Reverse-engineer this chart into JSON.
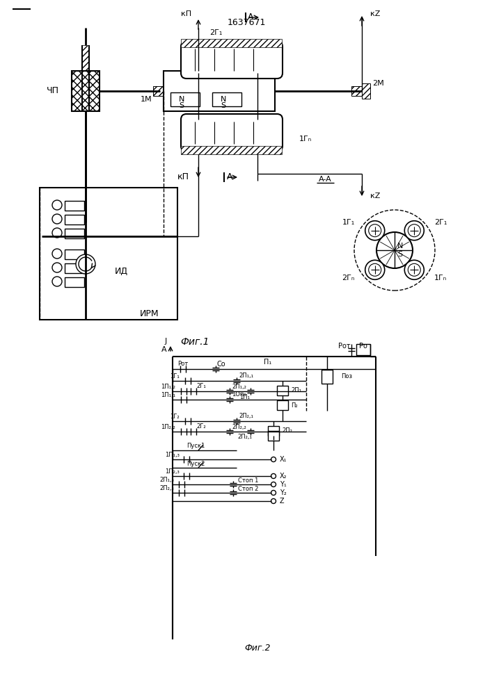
{
  "title": "1637671",
  "fig1_caption": "Фиг.1",
  "fig2_caption": "Фиг.2",
  "bg_color": "#ffffff",
  "line_color": "#000000"
}
